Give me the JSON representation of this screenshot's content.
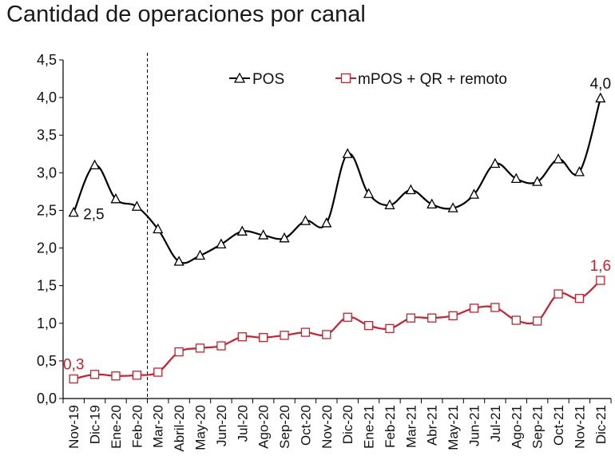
{
  "chart_data": {
    "type": "line",
    "title": "Cantidad de operaciones por canal",
    "xlabel": "",
    "ylabel": "",
    "ylim": [
      0,
      4.5
    ],
    "yticks": [
      "0,0",
      "0,5",
      "1,0",
      "1,5",
      "2,0",
      "2,5",
      "3,0",
      "3,5",
      "4,0",
      "4,5"
    ],
    "categories": [
      "Nov-19",
      "Dic-19",
      "Ene-20",
      "Feb-20",
      "Mar-20",
      "Abril-20",
      "May-20",
      "Jun-20",
      "Jul-20",
      "Ago-20",
      "Sep-20",
      "Oct-20",
      "Nov-20",
      "Dic-20",
      "Ene-21",
      "Feb-21",
      "Mar-21",
      "Abr-21",
      "May-21",
      "Jun-21",
      "Jul-21",
      "Ago-21",
      "Sep-21",
      "Oct-21",
      "Nov-21",
      "Dic-21"
    ],
    "reference_line_after": "Feb-20",
    "series": [
      {
        "name": "POS",
        "color": "#000000",
        "marker": "triangle",
        "values": [
          2.47,
          3.1,
          2.65,
          2.55,
          2.25,
          1.82,
          1.9,
          2.05,
          2.22,
          2.17,
          2.13,
          2.36,
          2.33,
          3.25,
          2.72,
          2.57,
          2.77,
          2.58,
          2.53,
          2.71,
          3.12,
          2.92,
          2.88,
          3.18,
          3.01,
          3.99
        ]
      },
      {
        "name": "mPOS + QR + remoto",
        "color": "#cc1f2b",
        "marker": "square",
        "values": [
          0.26,
          0.32,
          0.3,
          0.31,
          0.35,
          0.62,
          0.67,
          0.7,
          0.82,
          0.81,
          0.84,
          0.88,
          0.85,
          1.08,
          0.97,
          0.93,
          1.07,
          1.07,
          1.1,
          1.2,
          1.21,
          1.04,
          1.03,
          1.39,
          1.33,
          1.57
        ]
      }
    ],
    "annotations": [
      {
        "series": 0,
        "index": 0,
        "text": "2,5"
      },
      {
        "series": 0,
        "index": 25,
        "text": "4,0"
      },
      {
        "series": 1,
        "index": 0,
        "text": "0,3"
      },
      {
        "series": 1,
        "index": 25,
        "text": "1,6"
      }
    ]
  }
}
